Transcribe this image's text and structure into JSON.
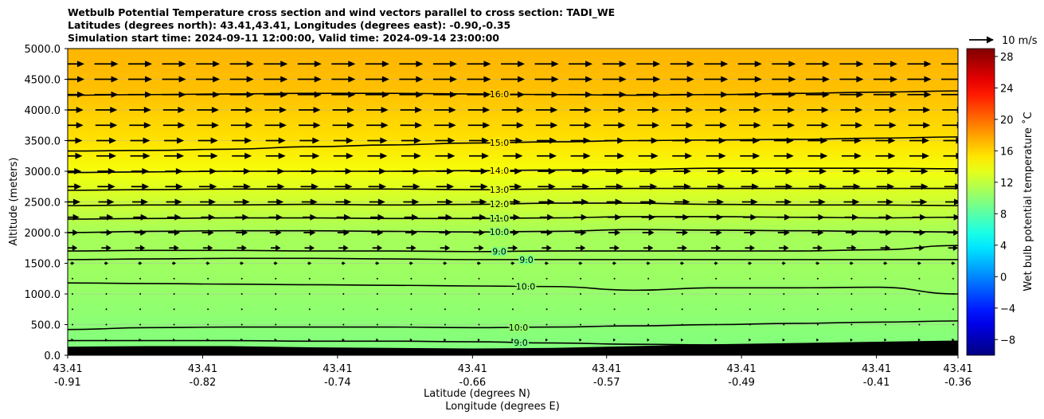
{
  "chart_data": {
    "type": "contour-cross-section",
    "title_lines": [
      "Wetbulb Potential Temperature cross section and wind vectors parallel to cross section: TADI_WE",
      "Latitudes (degrees north): 43.41,43.41, Longitudes (degrees east): -0.90,-0.35",
      "Simulation start time: 2024-09-11 12:00:00, Valid time: 2024-09-14 23:00:00"
    ],
    "ylabel": "Altitude (meters)",
    "xlabel_lat": "Latitude (degrees N)",
    "xlabel_lon": "Longitude (degrees E)",
    "ylim": [
      0,
      5000
    ],
    "y_ticks": [
      "0.0",
      "500.0",
      "1000.0",
      "1500.0",
      "2000.0",
      "2500.0",
      "3000.0",
      "3500.0",
      "4000.0",
      "4500.0",
      "5000.0"
    ],
    "x_ticks_lat": [
      "43.41",
      "43.41",
      "43.41",
      "43.41",
      "43.41",
      "43.41",
      "43.41",
      "43.41"
    ],
    "x_ticks_lon": [
      "-0.91",
      "-0.82",
      "-0.74",
      "-0.66",
      "-0.57",
      "-0.49",
      "-0.41",
      "-0.36"
    ],
    "quiver_key_label": "10 m/s",
    "colorbar_label": "Wet bulb potential temperature ˚C",
    "colorbar_range": [
      -10,
      29
    ],
    "colorbar_ticks": [
      "−8",
      "−4",
      "0",
      "4",
      "8",
      "12",
      "16",
      "20",
      "24",
      "28"
    ],
    "colorbar_tick_values": [
      -8,
      -4,
      0,
      4,
      8,
      12,
      16,
      20,
      24,
      28
    ],
    "contours": [
      {
        "label": "9.0",
        "level": 9,
        "alt": [
          240,
          240,
          240,
          230,
          230,
          220,
          200,
          180,
          170,
          170,
          150,
          150
        ]
      },
      {
        "label": "10.0",
        "level": 10,
        "alt": [
          420,
          450,
          460,
          460,
          460,
          450,
          460,
          480,
          500,
          520,
          540,
          560
        ]
      },
      {
        "label": "10.0",
        "level": 10,
        "alt": [
          1180,
          1170,
          1160,
          1150,
          1140,
          1130,
          1120,
          1060,
          1100,
          1100,
          1110,
          1000
        ]
      },
      {
        "label": "9.0",
        "level": 9,
        "alt": [
          1560,
          1570,
          1580,
          1580,
          1570,
          1560,
          1560,
          1560,
          1560,
          1560,
          1560,
          1560
        ]
      },
      {
        "label": "9.0",
        "level": 9,
        "alt": [
          1700,
          1710,
          1710,
          1700,
          1700,
          1690,
          1700,
          1700,
          1700,
          1700,
          1720,
          1790
        ]
      },
      {
        "label": "10.0",
        "level": 10,
        "alt": [
          2000,
          2020,
          2030,
          2030,
          2020,
          2010,
          2020,
          2050,
          2040,
          2030,
          2020,
          2010
        ]
      },
      {
        "label": "11.0",
        "level": 11,
        "alt": [
          2220,
          2230,
          2240,
          2240,
          2230,
          2230,
          2240,
          2260,
          2260,
          2250,
          2240,
          2250
        ]
      },
      {
        "label": "12.0",
        "level": 12,
        "alt": [
          2440,
          2450,
          2450,
          2460,
          2450,
          2460,
          2480,
          2480,
          2460,
          2450,
          2450,
          2440
        ]
      },
      {
        "label": "13.0",
        "level": 13,
        "alt": [
          2690,
          2700,
          2710,
          2710,
          2710,
          2700,
          2710,
          2720,
          2720,
          2720,
          2720,
          2720
        ]
      },
      {
        "label": "14.0",
        "level": 14,
        "alt": [
          2980,
          2990,
          3000,
          3000,
          3000,
          3010,
          3020,
          3030,
          3050,
          3050,
          3050,
          3040
        ]
      },
      {
        "label": "15.0",
        "level": 15,
        "alt": [
          3330,
          3340,
          3360,
          3400,
          3430,
          3460,
          3480,
          3500,
          3510,
          3520,
          3540,
          3560
        ]
      },
      {
        "label": "16.0",
        "level": 16,
        "alt": [
          4240,
          4250,
          4260,
          4270,
          4270,
          4260,
          4250,
          4240,
          4250,
          4270,
          4290,
          4310
        ]
      }
    ],
    "wind_levels": [
      {
        "alt": 4750,
        "speed": 12
      },
      {
        "alt": 4500,
        "speed": 12
      },
      {
        "alt": 4250,
        "speed": 12
      },
      {
        "alt": 4000,
        "speed": 11
      },
      {
        "alt": 3750,
        "speed": 11
      },
      {
        "alt": 3500,
        "speed": 10
      },
      {
        "alt": 3250,
        "speed": 10
      },
      {
        "alt": 3000,
        "speed": 9
      },
      {
        "alt": 2750,
        "speed": 9
      },
      {
        "alt": 2500,
        "speed": 8
      },
      {
        "alt": 2250,
        "speed": 7
      },
      {
        "alt": 2000,
        "speed": 6
      },
      {
        "alt": 1750,
        "speed": 5
      },
      {
        "alt": 1500,
        "speed": 2
      },
      {
        "alt": 1250,
        "speed": 0.5
      },
      {
        "alt": 1000,
        "speed": 0.3
      },
      {
        "alt": 750,
        "speed": 0.3
      },
      {
        "alt": 500,
        "speed": 0.8
      },
      {
        "alt": 250,
        "speed": 1.2
      }
    ],
    "terrain_alt": [
      140,
      150,
      150,
      130,
      120,
      110,
      120,
      150,
      180,
      200,
      220,
      240
    ],
    "background_stops": [
      {
        "alt": 0,
        "temp": 9.5
      },
      {
        "alt": 1200,
        "temp": 10.5
      },
      {
        "alt": 2000,
        "temp": 11
      },
      {
        "alt": 2500,
        "temp": 12.5
      },
      {
        "alt": 3000,
        "temp": 14
      },
      {
        "alt": 3500,
        "temp": 15.5
      },
      {
        "alt": 4300,
        "temp": 16.8
      },
      {
        "alt": 5000,
        "temp": 17.2
      }
    ]
  }
}
